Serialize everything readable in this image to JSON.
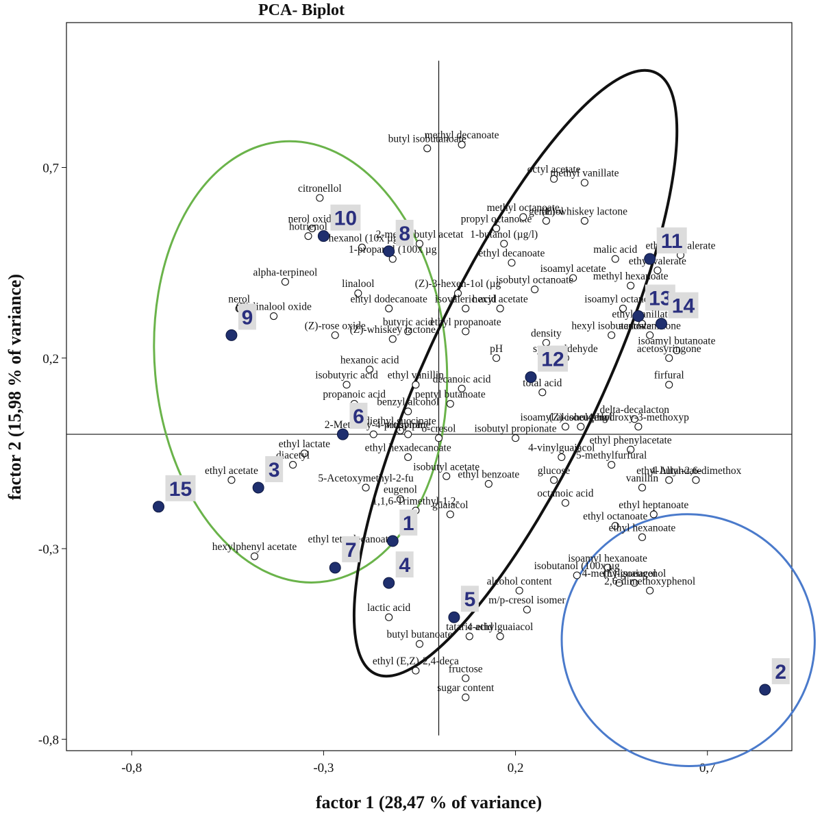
{
  "chart_data": {
    "type": "scatter",
    "title": "PCA- Biplot",
    "xlabel": "factor 1 (28,47 % of variance)",
    "ylabel": "factor 2 (15,98 % of variance)",
    "xlim": [
      -0.97,
      0.92
    ],
    "ylim": [
      -0.83,
      1.08
    ],
    "x_ticks": [
      {
        "value": -0.8,
        "label": "-0,8"
      },
      {
        "value": -0.3,
        "label": "-0,3"
      },
      {
        "value": 0.2,
        "label": "0,2"
      },
      {
        "value": 0.7,
        "label": "0,7"
      }
    ],
    "y_ticks": [
      {
        "value": 0.7,
        "label": "0,7"
      },
      {
        "value": 0.2,
        "label": "0,2"
      },
      {
        "value": -0.3,
        "label": "-0,3"
      },
      {
        "value": -0.8,
        "label": "-0,8"
      }
    ],
    "reference_lines": {
      "x": 0.0,
      "y": 0.0
    },
    "colors": {
      "variables": "#ffffff",
      "observations": "#1f2f6e",
      "label_bg": "#dcdcdc",
      "green_ellipse": "#6ab34a",
      "black_ellipse": "#111111",
      "blue_ellipse": "#4a7acb"
    },
    "variables": [
      {
        "label": "methyl decanoate",
        "x": 0.06,
        "y": 0.76
      },
      {
        "label": "butyl isobutanoate",
        "x": -0.03,
        "y": 0.75
      },
      {
        "label": "methyl vanillate",
        "x": 0.38,
        "y": 0.66
      },
      {
        "label": "octyl acetate",
        "x": 0.3,
        "y": 0.67
      },
      {
        "label": "citronellol",
        "x": -0.31,
        "y": 0.62
      },
      {
        "label": "propyl octanoate",
        "x": 0.15,
        "y": 0.54
      },
      {
        "label": "methyl octanoate",
        "x": 0.22,
        "y": 0.57
      },
      {
        "label": "geraniol",
        "x": 0.28,
        "y": 0.56
      },
      {
        "label": "(E)-whiskey lactone",
        "x": 0.38,
        "y": 0.56
      },
      {
        "label": "nerol oxide",
        "x": -0.33,
        "y": 0.54
      },
      {
        "label": "hotrienol",
        "x": -0.34,
        "y": 0.52
      },
      {
        "label": "1-hexanol (10x µg/l",
        "x": -0.2,
        "y": 0.49
      },
      {
        "label": "2-methylbutyl acetat",
        "x": -0.05,
        "y": 0.5
      },
      {
        "label": "1-butanol (µg/l)",
        "x": 0.17,
        "y": 0.5
      },
      {
        "label": "1-propanol (100x µg",
        "x": -0.12,
        "y": 0.46
      },
      {
        "label": "ethyl isovalerate",
        "x": 0.63,
        "y": 0.47
      },
      {
        "label": "malic acid",
        "x": 0.46,
        "y": 0.46
      },
      {
        "label": "ethyl valerate",
        "x": 0.57,
        "y": 0.43
      },
      {
        "label": "alpha-terpineol",
        "x": -0.4,
        "y": 0.4
      },
      {
        "label": "ethyl decanoate",
        "x": 0.19,
        "y": 0.45
      },
      {
        "label": "isoamyl acetate",
        "x": 0.35,
        "y": 0.41
      },
      {
        "label": "linalool",
        "x": -0.21,
        "y": 0.37
      },
      {
        "label": "(Z)-3-hexen-1ol (µg",
        "x": 0.05,
        "y": 0.37
      },
      {
        "label": "isobutyl octanoate",
        "x": 0.25,
        "y": 0.38
      },
      {
        "label": "methyl hexanoate",
        "x": 0.5,
        "y": 0.39
      },
      {
        "label": "ehtyl dodecanoate",
        "x": -0.13,
        "y": 0.33
      },
      {
        "label": "isovaleric acid",
        "x": 0.07,
        "y": 0.33
      },
      {
        "label": "hexyl acetate",
        "x": 0.16,
        "y": 0.33
      },
      {
        "label": "isoamyl octanoate",
        "x": 0.48,
        "y": 0.33
      },
      {
        "label": "nerol",
        "x": -0.52,
        "y": 0.33
      },
      {
        "label": "(E)-linalool oxide",
        "x": -0.43,
        "y": 0.31
      },
      {
        "label": "ethyl vanillate",
        "x": 0.53,
        "y": 0.29
      },
      {
        "label": "butyric acid",
        "x": -0.08,
        "y": 0.27
      },
      {
        "label": "ethyl propanoate",
        "x": 0.07,
        "y": 0.27
      },
      {
        "label": "hexyl isobutanoate",
        "x": 0.45,
        "y": 0.26
      },
      {
        "label": "acetovanillone",
        "x": 0.55,
        "y": 0.26
      },
      {
        "label": "(Z)-rose oxide",
        "x": -0.27,
        "y": 0.26
      },
      {
        "label": "(Z)-whiskey lactone",
        "x": -0.12,
        "y": 0.25
      },
      {
        "label": "density",
        "x": 0.28,
        "y": 0.24
      },
      {
        "label": "isoamyl butanoate",
        "x": 0.62,
        "y": 0.22
      },
      {
        "label": "pH",
        "x": 0.15,
        "y": 0.2
      },
      {
        "label": "syringaldehyde",
        "x": 0.33,
        "y": 0.2
      },
      {
        "label": "acetosyringone",
        "x": 0.6,
        "y": 0.2
      },
      {
        "label": "hexanoic acid",
        "x": -0.18,
        "y": 0.17
      },
      {
        "label": "firfural",
        "x": 0.6,
        "y": 0.13
      },
      {
        "label": "isobutyric acid",
        "x": -0.24,
        "y": 0.13
      },
      {
        "label": "ethyl vanillin",
        "x": -0.06,
        "y": 0.13
      },
      {
        "label": "decanoic acid",
        "x": 0.06,
        "y": 0.12
      },
      {
        "label": "total acid",
        "x": 0.27,
        "y": 0.11
      },
      {
        "label": "pentyl butanoate",
        "x": 0.03,
        "y": 0.08
      },
      {
        "label": "propanoic acid",
        "x": -0.22,
        "y": 0.08
      },
      {
        "label": "benzyl alcohol",
        "x": -0.08,
        "y": 0.06
      },
      {
        "label": "delta-decalacton",
        "x": 0.51,
        "y": 0.04
      },
      {
        "label": "diethyl succinate",
        "x": -0.1,
        "y": 0.01
      },
      {
        "label": "isoamyl alcohol (mg/",
        "x": 0.33,
        "y": 0.02
      },
      {
        "label": "(Z)-isoeugenol",
        "x": 0.37,
        "y": 0.02
      },
      {
        "label": "4-Hydroxy-3-methoxyp",
        "x": 0.52,
        "y": 0.02
      },
      {
        "label": "2-Methoxy-4-propylph",
        "x": -0.17,
        "y": 0.0
      },
      {
        "label": "vitispirane",
        "x": -0.08,
        "y": 0.0
      },
      {
        "label": "o-cresol",
        "x": 0.0,
        "y": -0.01
      },
      {
        "label": "isobutyl propionate",
        "x": 0.2,
        "y": -0.01
      },
      {
        "label": "ethyl phenylacetate",
        "x": 0.5,
        "y": -0.04
      },
      {
        "label": "ethyl lactate",
        "x": -0.35,
        "y": -0.05
      },
      {
        "label": "ethyl hexadecanoate",
        "x": -0.08,
        "y": -0.06
      },
      {
        "label": "5-methylfurfural",
        "x": 0.45,
        "y": -0.08
      },
      {
        "label": "diacetyl",
        "x": -0.38,
        "y": -0.08
      },
      {
        "label": "isobutyl acetate",
        "x": 0.02,
        "y": -0.11
      },
      {
        "label": "4-vinylguaiacol",
        "x": 0.32,
        "y": -0.06
      },
      {
        "label": "5-Acetoxymethyl-2-fu",
        "x": -0.19,
        "y": -0.14
      },
      {
        "label": "glucose",
        "x": 0.3,
        "y": -0.12
      },
      {
        "label": "ethyl butanoate",
        "x": 0.6,
        "y": -0.12
      },
      {
        "label": "ethyl benzoate",
        "x": 0.13,
        "y": -0.13
      },
      {
        "label": "ethyl acetate",
        "x": -0.54,
        "y": -0.12
      },
      {
        "label": "eugenol",
        "x": -0.1,
        "y": -0.17
      },
      {
        "label": "vanillin",
        "x": 0.53,
        "y": -0.14
      },
      {
        "label": "4-Allyl-2,6-dimethox",
        "x": 0.67,
        "y": -0.12
      },
      {
        "label": "1,1,6-Trimethyl-1,2-",
        "x": -0.06,
        "y": -0.2
      },
      {
        "label": "octanoic acid",
        "x": 0.33,
        "y": -0.18
      },
      {
        "label": "guaiacol",
        "x": 0.03,
        "y": -0.21
      },
      {
        "label": "ethyl heptanoate",
        "x": 0.56,
        "y": -0.21
      },
      {
        "label": "ethyl octanoate",
        "x": 0.46,
        "y": -0.24
      },
      {
        "label": "ethyl tetradecanoate",
        "x": -0.23,
        "y": -0.3
      },
      {
        "label": "ethyl hexanoate",
        "x": 0.53,
        "y": -0.27
      },
      {
        "label": "hexylphenyl acetate",
        "x": -0.48,
        "y": -0.32
      },
      {
        "label": "isoamyl hexanoate",
        "x": 0.44,
        "y": -0.35
      },
      {
        "label": "4-methylguaiacol",
        "x": 0.47,
        "y": -0.39
      },
      {
        "label": "isobutanol (100x µg",
        "x": 0.36,
        "y": -0.37
      },
      {
        "label": "(E)-isoeugenol",
        "x": 0.51,
        "y": -0.39
      },
      {
        "label": "2,6-dimethoxyphenol",
        "x": 0.55,
        "y": -0.41
      },
      {
        "label": "alcohol content",
        "x": 0.21,
        "y": -0.41
      },
      {
        "label": "m/p-cresol isomer",
        "x": 0.23,
        "y": -0.46
      },
      {
        "label": "lactic acid",
        "x": -0.13,
        "y": -0.48
      },
      {
        "label": "tataric acid",
        "x": 0.08,
        "y": -0.53
      },
      {
        "label": "4-ethylguaiacol",
        "x": 0.16,
        "y": -0.53
      },
      {
        "label": "butyl butanoate",
        "x": -0.05,
        "y": -0.55
      },
      {
        "label": "ethyl (E,Z)-2,4-deca",
        "x": -0.06,
        "y": -0.62
      },
      {
        "label": "fructose",
        "x": 0.07,
        "y": -0.64
      },
      {
        "label": "sugar content",
        "x": 0.07,
        "y": -0.69
      }
    ],
    "observations": [
      {
        "label": "1",
        "x": -0.12,
        "y": -0.28
      },
      {
        "label": "2",
        "x": 0.85,
        "y": -0.67
      },
      {
        "label": "3",
        "x": -0.47,
        "y": -0.14
      },
      {
        "label": "4",
        "x": -0.13,
        "y": -0.39
      },
      {
        "label": "5",
        "x": 0.04,
        "y": -0.48
      },
      {
        "label": "6",
        "x": -0.25,
        "y": 0.0
      },
      {
        "label": "7",
        "x": -0.27,
        "y": -0.35
      },
      {
        "label": "8",
        "x": -0.13,
        "y": 0.48
      },
      {
        "label": "9",
        "x": -0.54,
        "y": 0.26
      },
      {
        "label": "10",
        "x": -0.3,
        "y": 0.52
      },
      {
        "label": "11",
        "x": 0.55,
        "y": 0.46
      },
      {
        "label": "12",
        "x": 0.24,
        "y": 0.15
      },
      {
        "label": "13",
        "x": 0.52,
        "y": 0.31
      },
      {
        "label": "14",
        "x": 0.58,
        "y": 0.29
      },
      {
        "label": "15",
        "x": -0.73,
        "y": -0.19
      }
    ],
    "ellipses": [
      {
        "name": "green",
        "cx": -0.36,
        "cy": 0.19,
        "rx": 0.38,
        "ry": 0.58,
        "angle_deg": -5
      },
      {
        "name": "black",
        "cx": 0.2,
        "cy": 0.16,
        "rx": 0.23,
        "ry": 0.87,
        "angle_deg": 25
      },
      {
        "name": "blue",
        "cx": 0.65,
        "cy": -0.54,
        "rx": 0.33,
        "ry": 0.33,
        "angle_deg": 25
      }
    ],
    "grid": false,
    "legend": "none"
  }
}
